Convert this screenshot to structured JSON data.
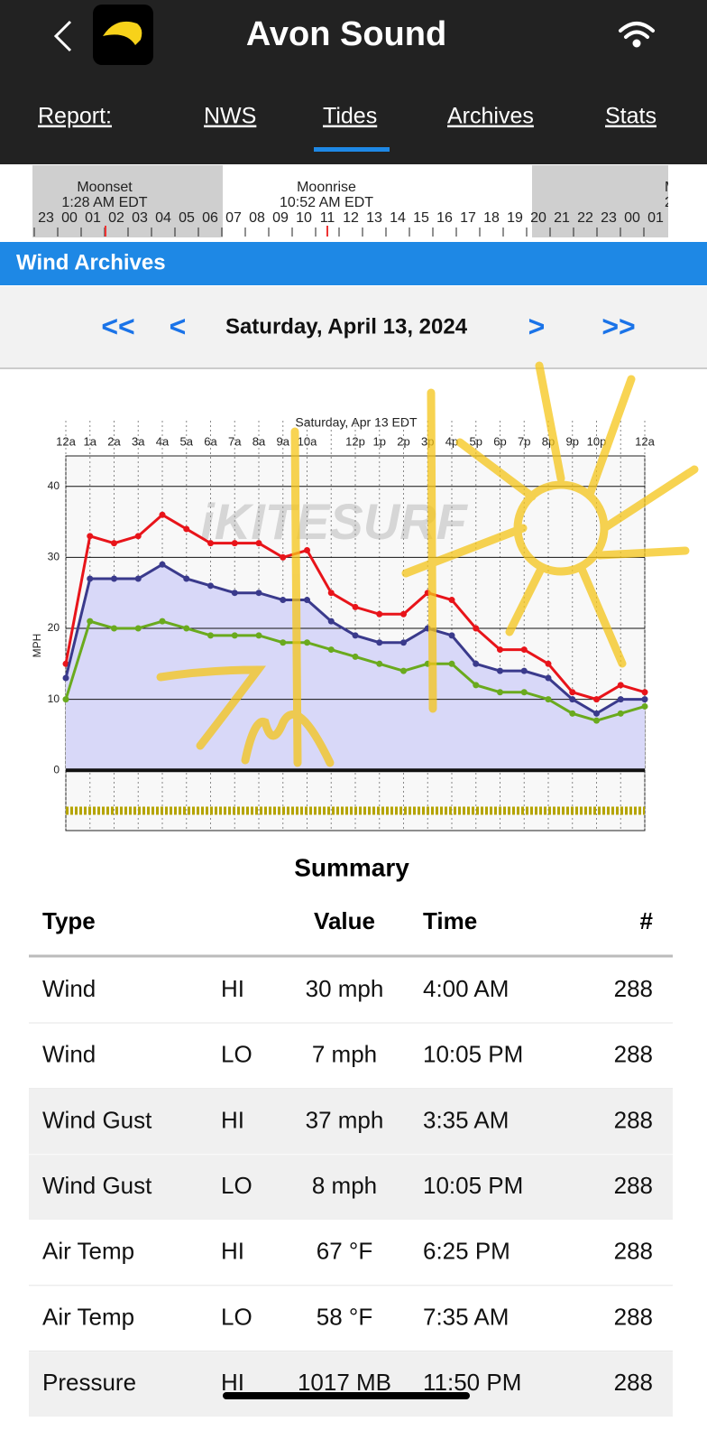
{
  "header": {
    "title": "Avon Sound"
  },
  "nav": {
    "tabs": [
      "Report:",
      "NWS",
      "Tides",
      "Archives",
      "Stats"
    ]
  },
  "timeline": {
    "events": [
      {
        "name": "Moonset",
        "time": "1:28 AM EDT"
      },
      {
        "name": "Moonrise",
        "time": "10:52 AM EDT"
      },
      {
        "name": "M",
        "time": "2:1"
      }
    ],
    "hours": [
      "23",
      "00",
      "01",
      "02",
      "03",
      "04",
      "05",
      "06",
      "07",
      "08",
      "09",
      "10",
      "11",
      "12",
      "13",
      "14",
      "15",
      "16",
      "17",
      "18",
      "19",
      "20",
      "21",
      "22",
      "23",
      "00",
      "01"
    ]
  },
  "section_title": "Wind Archives",
  "date_nav": {
    "first": "<<",
    "prev": "<",
    "date": "Saturday, April 13, 2024",
    "next": ">",
    "last": ">>"
  },
  "chart": {
    "title": "Saturday, Apr 13 EDT",
    "y_label": "MPH",
    "watermark": "iKITESURF",
    "x_labels": [
      "12a",
      "1a",
      "2a",
      "3a",
      "4a",
      "5a",
      "6a",
      "7a",
      "8a",
      "9a",
      "10a",
      null,
      "12p",
      "1p",
      "2p",
      "3p",
      "4p",
      "5p",
      "6p",
      "7p",
      "8p",
      "9p",
      "10p",
      null,
      "12a"
    ],
    "ylim": [
      -8.5,
      44.3
    ],
    "yticks": [
      0,
      10,
      20,
      30,
      40
    ],
    "series": [
      {
        "color": "#e8141a",
        "values": [
          15,
          33,
          32,
          33,
          36,
          34,
          32,
          32,
          32,
          30,
          31,
          25,
          23,
          22,
          22,
          25,
          24,
          20,
          17,
          17,
          15,
          11,
          10,
          12,
          11
        ]
      },
      {
        "color": "#3a3a8c",
        "values": [
          13,
          27,
          27,
          27,
          29,
          27,
          26,
          25,
          25,
          24,
          24,
          21,
          19,
          18,
          18,
          20,
          19,
          15,
          14,
          14,
          13,
          10,
          8,
          10,
          10
        ]
      },
      {
        "color": "#6aaa1e",
        "values": [
          10,
          21,
          20,
          20,
          21,
          20,
          19,
          19,
          19,
          18,
          18,
          17,
          16,
          15,
          14,
          15,
          15,
          12,
          11,
          11,
          10,
          8,
          7,
          8,
          9
        ]
      }
    ]
  },
  "summary": {
    "title": "Summary",
    "columns": {
      "type": "Type",
      "value": "Value",
      "time": "Time",
      "count": "#"
    },
    "rows": [
      [
        "Wind",
        "HI",
        "30 mph",
        "4:00 AM",
        288
      ],
      [
        "Wind",
        "LO",
        "7 mph",
        "10:05 PM",
        288
      ],
      [
        "Wind Gust",
        "HI",
        "37 mph",
        "3:35 AM",
        288
      ],
      [
        "Wind Gust",
        "LO",
        "8 mph",
        "10:05 PM",
        288
      ],
      [
        "Air Temp",
        "HI",
        "67 °F",
        "6:25 PM",
        288
      ],
      [
        "Air Temp",
        "LO",
        "58 °F",
        "7:35 AM",
        288
      ],
      [
        "Pressure",
        "HI",
        "1017 MB",
        "11:50 PM",
        288
      ]
    ]
  }
}
